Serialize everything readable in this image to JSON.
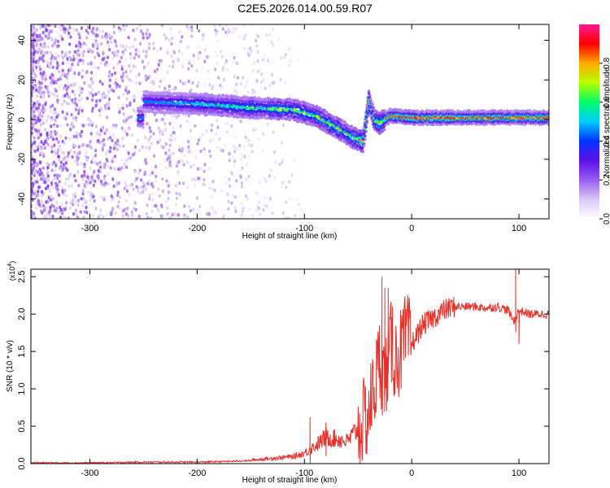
{
  "title": "C2E5.2026.014.00.59.R07",
  "chart_data": [
    {
      "type": "heatmap",
      "xlabel": "Height of straight line (km)",
      "ylabel": "Frequency (Hz)",
      "xlim": [
        -355,
        128
      ],
      "ylim": [
        -50,
        48
      ],
      "xticks": [
        -300,
        -200,
        -100,
        0,
        100
      ],
      "xtick_labels": [
        "-300",
        "-200",
        "-100",
        "0",
        "100"
      ],
      "yticks": [
        -40,
        -20,
        0,
        20,
        40
      ],
      "ytick_labels": [
        "-40",
        "-20",
        "0",
        "20",
        "40"
      ],
      "colorbar": {
        "label": "Normalized spectral amplitude",
        "range": [
          0,
          1
        ],
        "ticks": [
          0.0,
          0.2,
          0.4,
          0.6,
          0.8
        ],
        "tick_labels": [
          "0.0",
          "0.2",
          "0.4",
          "0.6",
          "0.8"
        ],
        "colormap": [
          "#ffffff",
          "#d8c8f6",
          "#9a5cf0",
          "#5e10e8",
          "#0033ff",
          "#00ccff",
          "#00ff66",
          "#b6ff00",
          "#ffaa00",
          "#ff0000",
          "#ff1a90"
        ]
      },
      "ridge": {
        "description_x": [
          -250,
          -200,
          -150,
          -110,
          -90,
          -70,
          -55,
          -45,
          -40,
          -35,
          -30,
          -20,
          0,
          50,
          100,
          128
        ],
        "frequency_hz": [
          9,
          8,
          6,
          5,
          2,
          -4,
          -9,
          -11,
          10,
          0,
          -2,
          2,
          1,
          1,
          1,
          1
        ]
      },
      "grid": false
    },
    {
      "type": "line",
      "xlabel": "Height of straight line (km)",
      "ylabel": "SNR (10 * v/v)",
      "y_multiplier_label": "(x10",
      "y_multiplier_exponent": "4",
      "y_multiplier_close": ")",
      "xlim": [
        -355,
        128
      ],
      "ylim": [
        0,
        2.6
      ],
      "xticks": [
        -300,
        -200,
        -100,
        0,
        100
      ],
      "xtick_labels": [
        "-300",
        "-200",
        "-100",
        "0",
        "100"
      ],
      "yticks": [
        0.0,
        0.5,
        1.0,
        1.5,
        2.0,
        2.5
      ],
      "ytick_labels": [
        "0.0",
        "0.5",
        "1.0",
        "1.5",
        "2.0",
        "2.5"
      ],
      "color": "#e8302a",
      "series": [
        {
          "x": [
            -355,
            -300,
            -250,
            -200,
            -170,
            -150,
            -130,
            -110,
            -100,
            -90,
            -80,
            -70,
            -60,
            -50,
            -40,
            -35,
            -30,
            -25,
            -20,
            -15,
            -10,
            -5,
            0,
            10,
            20,
            30,
            40,
            50,
            60,
            70,
            80,
            90,
            95,
            100,
            110,
            120,
            128
          ],
          "values": [
            0.01,
            0.01,
            0.02,
            0.02,
            0.03,
            0.04,
            0.06,
            0.08,
            0.12,
            0.2,
            0.3,
            0.28,
            0.25,
            0.4,
            0.7,
            1.0,
            1.4,
            1.1,
            1.6,
            1.4,
            1.5,
            1.7,
            1.6,
            1.85,
            1.95,
            2.05,
            2.1,
            2.1,
            2.1,
            2.08,
            2.1,
            2.05,
            1.9,
            2.05,
            2.0,
            2.0,
            2.0
          ],
          "spikes": [
            [
              -28,
              2.5
            ],
            [
              -25,
              2.35
            ],
            [
              -22,
              2.35
            ],
            [
              -18,
              2.1
            ],
            [
              -95,
              0.62
            ],
            [
              -80,
              0.55
            ],
            [
              97,
              2.6
            ],
            [
              100,
              1.6
            ]
          ]
        }
      ],
      "grid": false
    }
  ]
}
